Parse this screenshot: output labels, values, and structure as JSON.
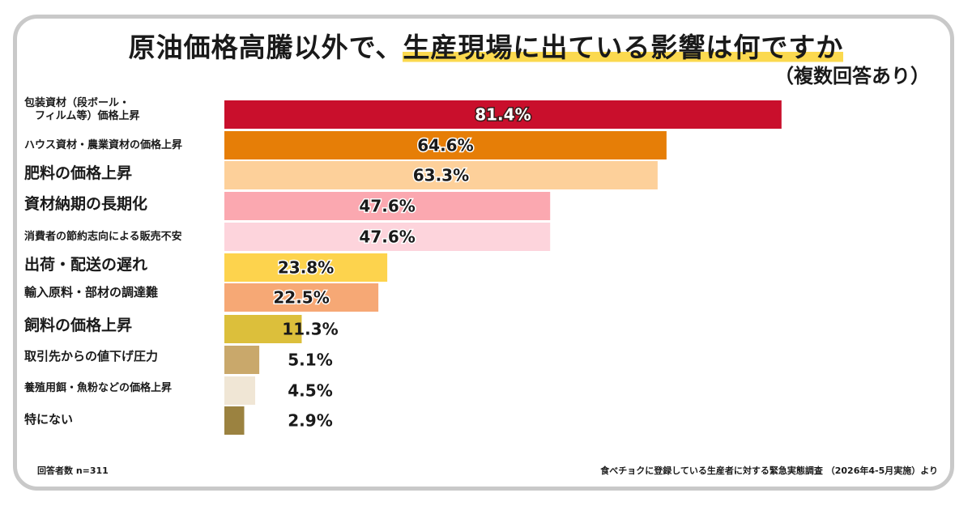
{
  "title": {
    "plain": "原油価格高騰以外で、",
    "highlight": "生産現場に出ている影響は何ですか"
  },
  "subtitle": "（複数回答あり）",
  "footer": {
    "sample": "回答者数 n=311",
    "source": "食べチョクに登録している生産者に対する緊急実態調査 （2026年4-5月実施）より"
  },
  "chart_data": {
    "type": "bar",
    "orientation": "horizontal",
    "categories": [
      "包装資材（段ボール・\n　フィルム等）価格上昇",
      "ハウス資材・農業資材の価格上昇",
      "肥料の価格上昇",
      "資材納期の長期化",
      "消費者の節約志向による販売不安",
      "出荷・配送の遅れ",
      "輸入原料・部材の調達難",
      "飼料の価格上昇",
      "取引先からの値下げ圧力",
      "養殖用餌・魚粉などの価格上昇",
      "特にない"
    ],
    "values": [
      81.4,
      64.6,
      63.3,
      47.6,
      47.6,
      23.8,
      22.5,
      11.3,
      5.1,
      4.5,
      2.9
    ],
    "value_labels": [
      "81.4%",
      "64.6%",
      "63.3%",
      "47.6%",
      "47.6%",
      "23.8%",
      "22.5%",
      "11.3%",
      "5.1%",
      "4.5%",
      "2.9%"
    ],
    "colors": [
      "#c90f2c",
      "#e67e07",
      "#fdd09a",
      "#fba8b0",
      "#fdd4dc",
      "#fdd34d",
      "#f6a875",
      "#dcbf3b",
      "#c9a86b",
      "#f0e6d5",
      "#9b8240"
    ],
    "label_style": [
      "light",
      "dark",
      "dark",
      "dark",
      "dark",
      "dark",
      "dark",
      "dark",
      "dark",
      "dark",
      "dark"
    ],
    "xlim": [
      0,
      100
    ],
    "grid": false,
    "legend": "none"
  }
}
